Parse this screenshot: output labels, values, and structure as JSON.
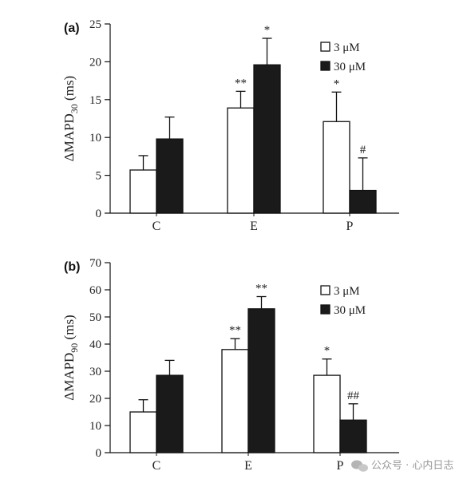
{
  "chart_data": [
    {
      "type": "bar",
      "panel_label": "(a)",
      "ylabel": {
        "prefix": "ΔMAPD",
        "sub": "30",
        "suffix": " (ms)"
      },
      "ylim": [
        0,
        25
      ],
      "yticks": [
        0,
        5,
        10,
        15,
        20,
        25
      ],
      "categories": [
        "C",
        "E",
        "P"
      ],
      "legend_position": "top-right",
      "series": [
        {
          "name": "3 μM",
          "fill": "#ffffff",
          "values": [
            5.7,
            13.9,
            12.1
          ],
          "errors": [
            1.9,
            2.2,
            3.9
          ],
          "annotations": [
            "",
            "**",
            "*"
          ]
        },
        {
          "name": "30 μM",
          "fill": "#1a1a1a",
          "values": [
            9.8,
            19.6,
            3.0
          ],
          "errors": [
            2.9,
            3.5,
            4.3
          ],
          "annotations": [
            "",
            "*",
            "#"
          ]
        }
      ]
    },
    {
      "type": "bar",
      "panel_label": "(b)",
      "ylabel": {
        "prefix": "ΔMAPD",
        "sub": "90",
        "suffix": " (ms)"
      },
      "ylim": [
        0,
        70
      ],
      "yticks": [
        0,
        10,
        20,
        30,
        40,
        50,
        60,
        70
      ],
      "categories": [
        "C",
        "E",
        "P"
      ],
      "legend_position": "top-right",
      "series": [
        {
          "name": "3 μM",
          "fill": "#ffffff",
          "values": [
            15,
            38,
            28.5
          ],
          "errors": [
            4.5,
            4,
            6
          ],
          "annotations": [
            "",
            "**",
            "*"
          ]
        },
        {
          "name": "30 μM",
          "fill": "#1a1a1a",
          "values": [
            28.5,
            53,
            12
          ],
          "errors": [
            5.5,
            4.5,
            6
          ],
          "annotations": [
            "",
            "**",
            "##"
          ]
        }
      ]
    }
  ],
  "watermark": {
    "text": "公众号 · 心内日志",
    "icon": "wechat-icon"
  }
}
